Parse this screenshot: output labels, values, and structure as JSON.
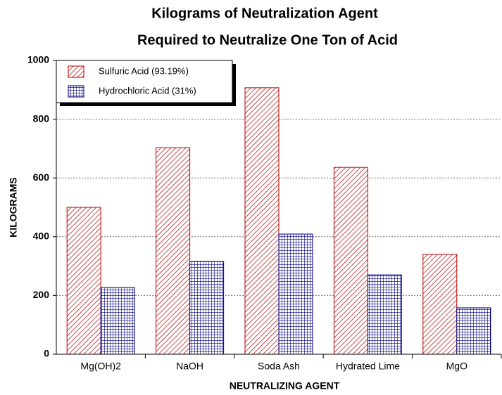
{
  "chart_data": {
    "type": "bar",
    "title": [
      "Kilograms of Neutralization Agent",
      "Required to Neutralize One Ton of Acid"
    ],
    "x_label": "NEUTRALIZING AGENT",
    "y_label": "KILOGRAMS",
    "categories": [
      "Mg(OH)2",
      "NaOH",
      "Soda Ash",
      "Hydrated Lime",
      "MgO"
    ],
    "series": [
      {
        "name": "Sulfuric Acid (93.19%)",
        "color": "#b00000",
        "pattern": "hatch",
        "values": [
          500,
          703,
          907,
          636,
          340
        ]
      },
      {
        "name": "Hydrochloric Acid (31%)",
        "color": "#000080",
        "pattern": "grid",
        "values": [
          227,
          316,
          409,
          270,
          158
        ]
      }
    ],
    "ylim": [
      0,
      1000
    ],
    "yticks": [
      0,
      200,
      400,
      600,
      800,
      1000
    ],
    "grid": true,
    "legend": "top-left"
  }
}
